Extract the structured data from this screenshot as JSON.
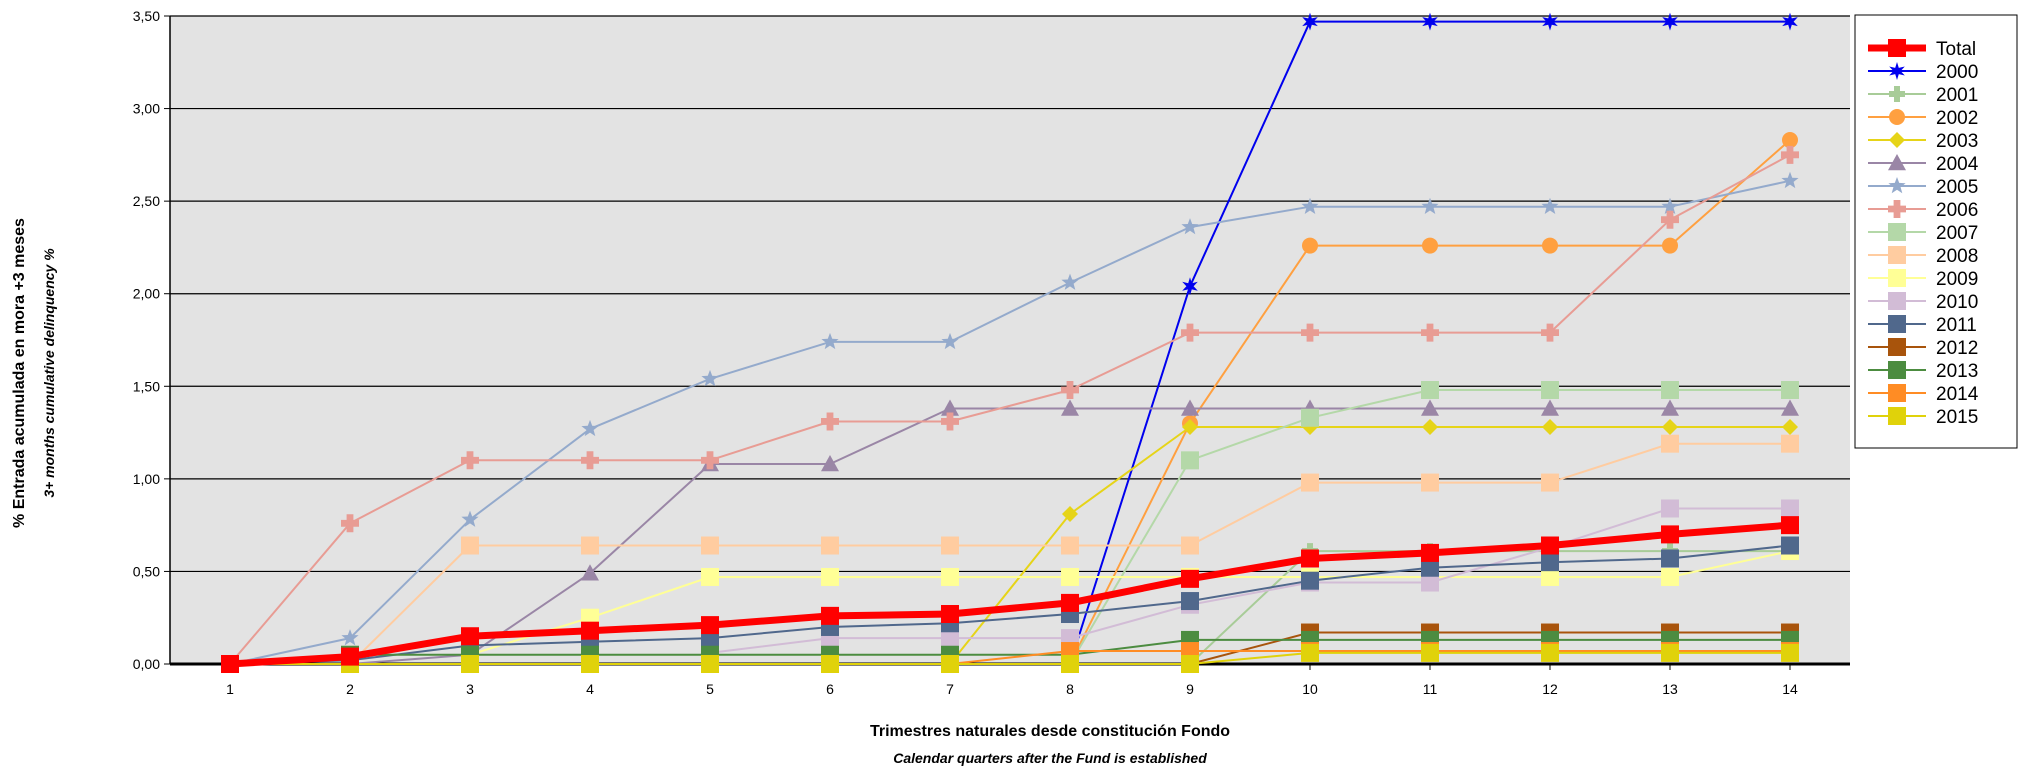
{
  "chart_data": {
    "type": "line",
    "title": "",
    "xlabel": "Trimestres naturales desde constitución Fondo",
    "xlabel_sub": "Calendar quarters after the Fund is established",
    "ylabel": "% Entrada acumulada en mora +3 meses",
    "ylabel_sub": "3+ months cumulative delinquency %",
    "x": [
      1,
      2,
      3,
      4,
      5,
      6,
      7,
      8,
      9,
      10,
      11,
      12,
      13,
      14
    ],
    "xlim": [
      0.5,
      14.5
    ],
    "ylim": [
      0,
      3.5
    ],
    "yticks": [
      "0,00",
      "0,50",
      "1,00",
      "1,50",
      "2,00",
      "2,50",
      "3,00",
      "3,50"
    ],
    "grid": "horizontal",
    "legend_position": "right",
    "plot_background": "#e3e3e3",
    "series": [
      {
        "name": "Total",
        "color": "#ff0000",
        "width": 7,
        "marker": "square",
        "msize": 9,
        "values": [
          0.0,
          0.04,
          0.15,
          0.18,
          0.21,
          0.26,
          0.27,
          0.33,
          0.46,
          0.57,
          0.6,
          0.64,
          0.7,
          0.75
        ]
      },
      {
        "name": "2000",
        "color": "#0000ee",
        "width": 2,
        "marker": "star6",
        "msize": 9,
        "values": [
          null,
          null,
          null,
          null,
          null,
          null,
          null,
          0.0,
          2.04,
          3.47,
          3.47,
          3.47,
          3.47,
          3.47
        ]
      },
      {
        "name": "2001",
        "color": "#a8cc98",
        "width": 2,
        "marker": "cross",
        "msize": 8,
        "values": [
          null,
          null,
          null,
          null,
          null,
          null,
          null,
          null,
          0.0,
          0.61,
          0.61,
          0.61,
          0.61,
          0.61
        ]
      },
      {
        "name": "2002",
        "color": "#ffa040",
        "width": 2,
        "marker": "circle",
        "msize": 8,
        "values": [
          null,
          null,
          null,
          null,
          null,
          null,
          null,
          0.0,
          1.3,
          2.26,
          2.26,
          2.26,
          2.26,
          2.83
        ]
      },
      {
        "name": "2003",
        "color": "#e6d418",
        "width": 2,
        "marker": "diamond",
        "msize": 8,
        "values": [
          null,
          null,
          null,
          null,
          null,
          null,
          0.0,
          0.81,
          1.28,
          1.28,
          1.28,
          1.28,
          1.28,
          1.28
        ]
      },
      {
        "name": "2004",
        "color": "#9a86a6",
        "width": 2,
        "marker": "triangle",
        "msize": 9,
        "values": [
          0.0,
          0.0,
          0.05,
          0.49,
          1.08,
          1.08,
          1.38,
          1.38,
          1.38,
          1.38,
          1.38,
          1.38,
          1.38,
          1.38
        ]
      },
      {
        "name": "2005",
        "color": "#94aacc",
        "width": 2,
        "marker": "star5",
        "msize": 9,
        "values": [
          0.0,
          0.14,
          0.78,
          1.27,
          1.54,
          1.74,
          1.74,
          2.06,
          2.36,
          2.47,
          2.47,
          2.47,
          2.47,
          2.61
        ]
      },
      {
        "name": "2006",
        "color": "#e89c94",
        "width": 2,
        "marker": "cross",
        "msize": 9,
        "values": [
          0.0,
          0.76,
          1.1,
          1.1,
          1.1,
          1.31,
          1.31,
          1.48,
          1.79,
          1.79,
          1.79,
          1.79,
          2.4,
          2.75
        ]
      },
      {
        "name": "2007",
        "color": "#b4d8a8",
        "width": 2,
        "marker": "square",
        "msize": 9,
        "values": [
          null,
          null,
          null,
          null,
          null,
          null,
          null,
          0.0,
          1.1,
          1.33,
          1.48,
          1.48,
          1.48,
          1.48
        ]
      },
      {
        "name": "2008",
        "color": "#ffcca0",
        "width": 2,
        "marker": "square",
        "msize": 9,
        "values": [
          null,
          0.0,
          0.64,
          0.64,
          0.64,
          0.64,
          0.64,
          0.64,
          0.64,
          0.98,
          0.98,
          0.98,
          1.19,
          1.19
        ]
      },
      {
        "name": "2009",
        "color": "#ffff96",
        "width": 2,
        "marker": "square",
        "msize": 9,
        "values": [
          null,
          null,
          0.05,
          0.25,
          0.47,
          0.47,
          0.47,
          0.47,
          0.47,
          0.47,
          0.47,
          0.47,
          0.47,
          0.61
        ]
      },
      {
        "name": "2010",
        "color": "#d2bcd6",
        "width": 2,
        "marker": "square",
        "msize": 9,
        "values": [
          null,
          null,
          null,
          null,
          0.06,
          0.14,
          0.14,
          0.14,
          0.32,
          0.44,
          0.44,
          0.63,
          0.84,
          0.84
        ]
      },
      {
        "name": "2011",
        "color": "#50688c",
        "width": 2,
        "marker": "square",
        "msize": 9,
        "values": [
          0.0,
          0.02,
          0.1,
          0.12,
          0.14,
          0.2,
          0.22,
          0.27,
          0.34,
          0.45,
          0.52,
          0.55,
          0.57,
          0.64
        ]
      },
      {
        "name": "2012",
        "color": "#a8540c",
        "width": 2,
        "marker": "square",
        "msize": 9,
        "values": [
          null,
          null,
          null,
          null,
          null,
          null,
          null,
          null,
          0.0,
          0.17,
          0.17,
          0.17,
          0.17,
          0.17
        ]
      },
      {
        "name": "2013",
        "color": "#4c8c40",
        "width": 2,
        "marker": "square",
        "msize": 9,
        "values": [
          null,
          0.05,
          0.05,
          0.05,
          0.05,
          0.05,
          0.05,
          0.05,
          0.13,
          0.13,
          0.13,
          0.13,
          0.13,
          0.13
        ]
      },
      {
        "name": "2014",
        "color": "#ff8c24",
        "width": 2,
        "marker": "square",
        "msize": 9,
        "values": [
          null,
          null,
          null,
          null,
          null,
          null,
          0.0,
          0.07,
          0.07,
          0.07,
          0.07,
          0.07,
          0.07,
          0.07
        ]
      },
      {
        "name": "2015",
        "color": "#e0d20a",
        "width": 2,
        "marker": "square",
        "msize": 9,
        "values": [
          0.0,
          0.0,
          0.0,
          0.0,
          0.0,
          0.0,
          0.0,
          0.0,
          0.0,
          0.06,
          0.06,
          0.06,
          0.06,
          0.06
        ]
      }
    ]
  }
}
